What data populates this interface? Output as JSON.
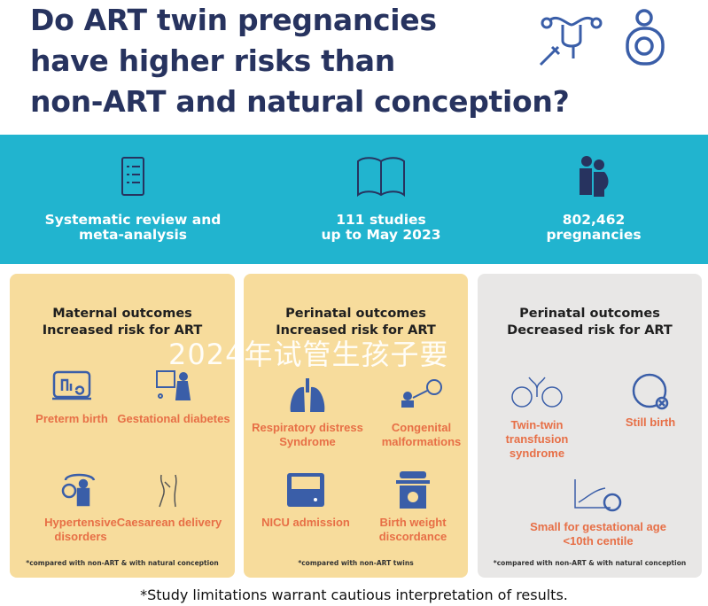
{
  "title": {
    "line1": "Do ART twin pregnancies",
    "line2": "have higher risks than",
    "line3": "non-ART and natural conception?"
  },
  "stats": [
    {
      "label1": "Systematic review and",
      "label2": "meta-analysis",
      "icon": "checklist-icon"
    },
    {
      "label1": "111 studies",
      "label2": "up to May 2023",
      "icon": "book-icon"
    },
    {
      "label1": "802,462",
      "label2": "pregnancies",
      "icon": "pregnant-couple-icon"
    }
  ],
  "panels": [
    {
      "heading1": "Maternal outcomes",
      "heading2": "Increased risk for ART",
      "items": [
        "Preterm birth",
        "Gestational diabetes",
        "Hypertensive disorders",
        "Caesarean delivery"
      ],
      "note": "*compared with non-ART & with natural conception"
    },
    {
      "heading1": "Perinatal outcomes",
      "heading2": "Increased risk for ART",
      "items": [
        "Respiratory distress Syndrome",
        "Congenital malformations",
        "NICU admission",
        "Birth weight discordance"
      ],
      "note": "*compared with non-ART twins"
    },
    {
      "heading1": "Perinatal outcomes",
      "heading2": "Decreased risk for ART",
      "items": [
        "Twin-twin transfusion syndrome",
        "Still birth",
        "Small for gestational age <10th centile"
      ],
      "note": "*compared with non-ART & with natural conception"
    }
  ],
  "footer": "*Study limitations warrant cautious interpretation of results.",
  "watermark": "2024年试管生孩子要",
  "colors": {
    "navy": "#27335f",
    "cyan": "#21b4cf",
    "panel_yellow": "#f7dc9c",
    "panel_gray": "#e8e7e6",
    "orange": "#e76f46",
    "icon_blue": "#3a5ea8"
  }
}
